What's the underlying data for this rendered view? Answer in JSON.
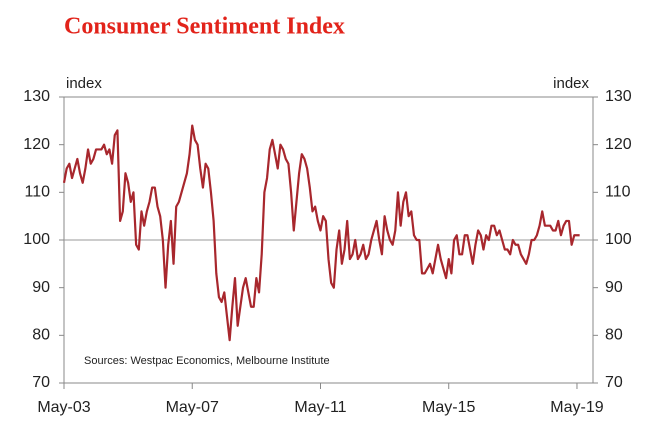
{
  "chart_data": {
    "type": "line",
    "title": "Consumer Sentiment Index",
    "y_label": "index",
    "y2_label": "index",
    "annotation": "Sources: Westpac Economics, Melbourne Institute",
    "xlim": [
      "2003-05",
      "2019-11"
    ],
    "xticks": [
      {
        "value": "2003-05",
        "label": "May-03"
      },
      {
        "value": "2007-05",
        "label": "May-07"
      },
      {
        "value": "2011-05",
        "label": "May-11"
      },
      {
        "value": "2015-05",
        "label": "May-15"
      },
      {
        "value": "2019-05",
        "label": "May-19"
      }
    ],
    "ylim": [
      70,
      130
    ],
    "yticks": [
      70,
      80,
      90,
      100,
      110,
      120,
      130
    ],
    "y2lim": [
      70,
      130
    ],
    "y2ticks": [
      70,
      80,
      90,
      100,
      110,
      120,
      130
    ],
    "reference_line": 100,
    "grid": false,
    "x": [
      "2003-05",
      "2003-06",
      "2003-07",
      "2003-08",
      "2003-09",
      "2003-10",
      "2003-11",
      "2003-12",
      "2004-01",
      "2004-02",
      "2004-03",
      "2004-04",
      "2004-05",
      "2004-06",
      "2004-07",
      "2004-08",
      "2004-09",
      "2004-10",
      "2004-11",
      "2004-12",
      "2005-01",
      "2005-02",
      "2005-03",
      "2005-04",
      "2005-05",
      "2005-06",
      "2005-07",
      "2005-08",
      "2005-09",
      "2005-10",
      "2005-11",
      "2005-12",
      "2006-01",
      "2006-02",
      "2006-03",
      "2006-04",
      "2006-05",
      "2006-06",
      "2006-07",
      "2006-08",
      "2006-09",
      "2006-10",
      "2006-11",
      "2006-12",
      "2007-01",
      "2007-02",
      "2007-03",
      "2007-04",
      "2007-05",
      "2007-06",
      "2007-07",
      "2007-08",
      "2007-09",
      "2007-10",
      "2007-11",
      "2007-12",
      "2008-01",
      "2008-02",
      "2008-03",
      "2008-04",
      "2008-05",
      "2008-06",
      "2008-07",
      "2008-08",
      "2008-09",
      "2008-10",
      "2008-11",
      "2008-12",
      "2009-01",
      "2009-02",
      "2009-03",
      "2009-04",
      "2009-05",
      "2009-06",
      "2009-07",
      "2009-08",
      "2009-09",
      "2009-10",
      "2009-11",
      "2009-12",
      "2010-01",
      "2010-02",
      "2010-03",
      "2010-04",
      "2010-05",
      "2010-06",
      "2010-07",
      "2010-08",
      "2010-09",
      "2010-10",
      "2010-11",
      "2010-12",
      "2011-01",
      "2011-02",
      "2011-03",
      "2011-04",
      "2011-05",
      "2011-06",
      "2011-07",
      "2011-08",
      "2011-09",
      "2011-10",
      "2011-11",
      "2011-12",
      "2012-01",
      "2012-02",
      "2012-03",
      "2012-04",
      "2012-05",
      "2012-06",
      "2012-07",
      "2012-08",
      "2012-09",
      "2012-10",
      "2012-11",
      "2012-12",
      "2013-01",
      "2013-02",
      "2013-03",
      "2013-04",
      "2013-05",
      "2013-06",
      "2013-07",
      "2013-08",
      "2013-09",
      "2013-10",
      "2013-11",
      "2013-12",
      "2014-01",
      "2014-02",
      "2014-03",
      "2014-04",
      "2014-05",
      "2014-06",
      "2014-07",
      "2014-08",
      "2014-09",
      "2014-10",
      "2014-11",
      "2014-12",
      "2015-01",
      "2015-02",
      "2015-03",
      "2015-04",
      "2015-05",
      "2015-06",
      "2015-07",
      "2015-08",
      "2015-09",
      "2015-10",
      "2015-11",
      "2015-12",
      "2016-01",
      "2016-02",
      "2016-03",
      "2016-04",
      "2016-05",
      "2016-06",
      "2016-07",
      "2016-08",
      "2016-09",
      "2016-10",
      "2016-11",
      "2016-12",
      "2017-01",
      "2017-02",
      "2017-03",
      "2017-04",
      "2017-05",
      "2017-06",
      "2017-07",
      "2017-08",
      "2017-09",
      "2017-10",
      "2017-11",
      "2017-12",
      "2018-01",
      "2018-02",
      "2018-03",
      "2018-04",
      "2018-05",
      "2018-06",
      "2018-07",
      "2018-08",
      "2018-09",
      "2018-10",
      "2018-11",
      "2018-12",
      "2019-01",
      "2019-02",
      "2019-03",
      "2019-04",
      "2019-05",
      "2019-06"
    ],
    "series": [
      {
        "name": "Consumer Sentiment",
        "color": "#a8272d",
        "values": [
          112,
          115,
          116,
          113,
          115,
          117,
          114,
          112,
          115,
          119,
          116,
          117,
          119,
          119,
          119,
          120,
          118,
          119,
          116,
          122,
          123,
          104,
          106,
          114,
          112,
          108,
          110,
          99,
          98,
          106,
          103,
          106,
          108,
          111,
          111,
          107,
          105,
          100,
          90,
          99,
          104,
          95,
          107,
          108,
          110,
          112,
          114,
          118,
          124,
          121,
          120,
          115,
          111,
          116,
          115,
          110,
          104,
          93,
          88,
          87,
          89,
          84,
          79,
          86,
          92,
          82,
          86,
          90,
          92,
          89,
          86,
          86,
          92,
          89,
          97,
          110,
          113,
          119,
          121,
          118,
          115,
          120,
          119,
          117,
          116,
          110,
          102,
          108,
          114,
          118,
          117,
          115,
          111,
          106,
          107,
          104,
          102,
          105,
          104,
          96,
          91,
          90,
          98,
          102,
          95,
          98,
          104,
          96,
          97,
          100,
          96,
          97,
          99,
          96,
          97,
          100,
          102,
          104,
          100,
          97,
          105,
          102,
          100,
          99,
          102,
          110,
          103,
          108,
          110,
          105,
          106,
          101,
          100,
          100,
          93,
          93,
          94,
          95,
          93,
          96,
          99,
          96,
          94,
          92,
          96,
          93,
          100,
          101,
          97,
          97,
          101,
          101,
          98,
          95,
          99,
          102,
          101,
          98,
          101,
          100,
          103,
          103,
          101,
          102,
          100,
          98,
          98,
          97,
          100,
          99,
          99,
          97,
          96,
          95,
          97,
          100,
          100,
          101,
          103,
          106,
          103,
          103,
          103,
          102,
          102,
          104,
          101,
          103,
          104,
          104,
          99,
          101,
          101,
          101
        ]
      }
    ]
  }
}
